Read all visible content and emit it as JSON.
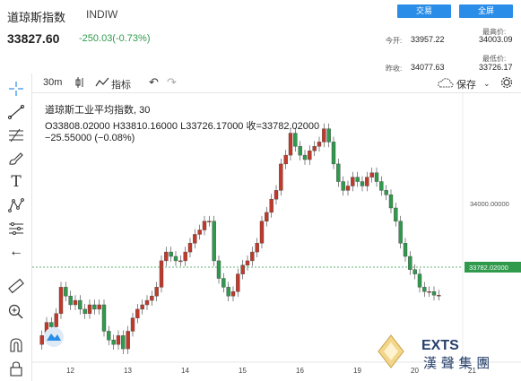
{
  "header": {
    "title": "道琼斯指数",
    "code": "INDIW",
    "trade_button": "交易",
    "fullscreen_button": "全屏",
    "price": "33827.60",
    "change": "-250.03(-0.73%)",
    "today_open_label": "今开:",
    "today_open": "33957.22",
    "high_label": "最高价:",
    "high": "34003.09",
    "prev_close_label": "昨收:",
    "prev_close": "34077.63",
    "low_label": "最低价:",
    "low": "33726.17"
  },
  "toolbar": {
    "interval": "30m",
    "indicators": "指标",
    "save": "保存"
  },
  "legend": {
    "name": "道琼斯工业平均指数, 30",
    "ohlc": "O33808.02000  H33810.16000  L33726.17000  收=33782.02000",
    "change": "−25.55000 (−0.08%)"
  },
  "colors": {
    "up": "#2f9a4c",
    "down": "#c0392b",
    "accent": "#2a8de8"
  },
  "watermark": {
    "text": "漢 聲 集 團",
    "logo_text": "EXTS"
  },
  "chart_data": {
    "type": "candlestick",
    "x_ticks": [
      "12",
      "13",
      "14",
      "15",
      "16",
      "19",
      "20",
      "21"
    ],
    "y_ticks": [
      "34000.00000"
    ],
    "last_price_label": "33782.02000",
    "series": [
      {
        "day": "12",
        "values": [
          33690,
          33720,
          33710,
          33740,
          33800,
          33780,
          33760,
          33770,
          33750,
          33740,
          33760,
          33750
        ]
      },
      {
        "day": "13",
        "values": [
          33760,
          33700,
          33680,
          33670,
          33690,
          33660,
          33700,
          33730,
          33750,
          33760,
          33770,
          33780
        ]
      },
      {
        "day": "14",
        "values": [
          33800,
          33860,
          33880,
          33870,
          33860,
          33860,
          33880,
          33900,
          33920,
          33930,
          33950,
          33950
        ]
      },
      {
        "day": "15",
        "values": [
          33860,
          33820,
          33800,
          33780,
          33790,
          33830,
          33850,
          33860,
          33880,
          33900,
          33950,
          33970
        ]
      },
      {
        "day": "16",
        "values": [
          34000,
          34020,
          34080,
          34100,
          34150,
          34120,
          34100,
          34090,
          34110,
          34120,
          34130,
          34160
        ]
      },
      {
        "day": "19",
        "values": [
          34130,
          34080,
          34040,
          34020,
          34030,
          34050,
          34040,
          34030,
          34050,
          34060,
          34040,
          34020
        ]
      },
      {
        "day": "20",
        "values": [
          34010,
          33980,
          33950,
          33900,
          33870,
          33840,
          33830,
          33800,
          33790,
          33790,
          33782,
          33782
        ]
      }
    ]
  }
}
